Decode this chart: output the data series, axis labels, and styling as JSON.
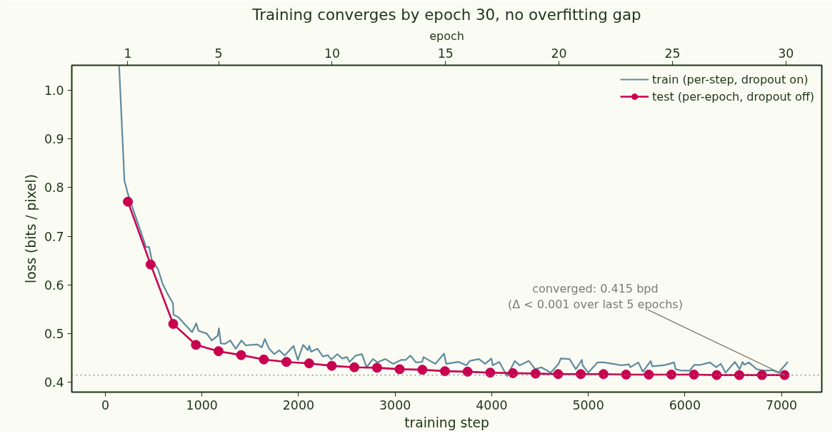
{
  "chart_data": {
    "type": "line",
    "title": "Training converges by epoch 30, no overfitting gap",
    "xlabel": "training step",
    "ylabel": "loss (bits / pixel)",
    "x2label": "epoch",
    "xlim": [
      -347,
      7417
    ],
    "xticks": [
      0,
      1000,
      2000,
      3000,
      4000,
      5000,
      6000,
      7000
    ],
    "x2lim": [
      -1.47,
      31.58
    ],
    "x2ticks": [
      1,
      5,
      10,
      15,
      20,
      25,
      30
    ],
    "ylim": [
      0.38,
      1.051
    ],
    "yticks": [
      {
        "value": 0.4,
        "label": "0.4"
      },
      {
        "value": 0.5,
        "label": "0.5"
      },
      {
        "value": 0.6,
        "label": "0.6"
      },
      {
        "value": 0.7,
        "label": "0.7"
      },
      {
        "value": 0.8,
        "label": "0.8"
      },
      {
        "value": 0.9,
        "label": "0.9"
      },
      {
        "value": 1.0,
        "label": "1.0"
      }
    ],
    "grid": false,
    "legend": "top right",
    "line_style": "solid",
    "series": [
      {
        "name": "train (per-step, dropout on)",
        "color": "#5f8aa0",
        "marker": "none",
        "x": [
          143,
          198,
          240,
          421,
          453,
          483,
          545,
          594,
          644,
          701,
          706,
          755,
          898,
          941,
          965,
          1052,
          1102,
          1164,
          1176,
          1196,
          1238,
          1294,
          1349,
          1410,
          1453,
          1572,
          1621,
          1651,
          1696,
          1750,
          1800,
          1857,
          1948,
          1993,
          2048,
          2097,
          2112,
          2130,
          2197,
          2253,
          2303,
          2340,
          2402,
          2452,
          2502,
          2528,
          2592,
          2657,
          2705,
          2770,
          2818,
          2899,
          2980,
          3061,
          3109,
          3158,
          3216,
          3280,
          3294,
          3416,
          3507,
          3529,
          3658,
          3739,
          3771,
          3868,
          3932,
          3997,
          4010,
          4078,
          4159,
          4240,
          4288,
          4385,
          4450,
          4514,
          4611,
          4692,
          4715,
          4805,
          4870,
          4934,
          4941,
          4999,
          5096,
          5161,
          5258,
          5339,
          5419,
          5436,
          5517,
          5565,
          5646,
          5662,
          5775,
          5840,
          5888,
          5904,
          5969,
          6049,
          6098,
          6162,
          6259,
          6324,
          6372,
          6421,
          6518,
          6566,
          6598,
          6614,
          6662,
          6743,
          6824,
          6904,
          6969,
          7066
        ],
        "values": [
          1.05,
          0.814,
          0.783,
          0.678,
          0.678,
          0.65,
          0.633,
          0.602,
          0.582,
          0.562,
          0.539,
          0.534,
          0.503,
          0.521,
          0.506,
          0.5,
          0.486,
          0.496,
          0.511,
          0.48,
          0.479,
          0.486,
          0.469,
          0.486,
          0.476,
          0.478,
          0.472,
          0.489,
          0.469,
          0.458,
          0.466,
          0.455,
          0.475,
          0.446,
          0.477,
          0.466,
          0.475,
          0.463,
          0.469,
          0.453,
          0.456,
          0.447,
          0.458,
          0.449,
          0.452,
          0.442,
          0.455,
          0.458,
          0.431,
          0.448,
          0.441,
          0.448,
          0.438,
          0.446,
          0.446,
          0.455,
          0.441,
          0.442,
          0.452,
          0.438,
          0.459,
          0.438,
          0.442,
          0.435,
          0.444,
          0.448,
          0.438,
          0.449,
          0.435,
          0.442,
          0.413,
          0.444,
          0.435,
          0.444,
          0.427,
          0.431,
          0.42,
          0.438,
          0.449,
          0.448,
          0.427,
          0.446,
          0.435,
          0.42,
          0.441,
          0.441,
          0.438,
          0.435,
          0.437,
          0.431,
          0.441,
          0.422,
          0.444,
          0.433,
          0.435,
          0.438,
          0.441,
          0.427,
          0.424,
          0.424,
          0.436,
          0.436,
          0.441,
          0.431,
          0.438,
          0.42,
          0.442,
          0.427,
          0.442,
          0.436,
          0.441,
          0.427,
          0.424,
          0.425,
          0.42,
          0.442
        ]
      },
      {
        "name": "test (per-epoch, dropout off)",
        "color": "#c8004f",
        "marker": "circle",
        "x": [
          234,
          469,
          703,
          938,
          1172,
          1406,
          1641,
          1875,
          2110,
          2344,
          2578,
          2813,
          3047,
          3282,
          3516,
          3750,
          3985,
          4219,
          4454,
          4688,
          4922,
          5157,
          5391,
          5626,
          5860,
          6094,
          6329,
          6563,
          6798,
          7032
        ],
        "values": [
          0.771,
          0.642,
          0.52,
          0.477,
          0.464,
          0.456,
          0.447,
          0.442,
          0.439,
          0.434,
          0.431,
          0.43,
          0.427,
          0.426,
          0.423,
          0.422,
          0.42,
          0.419,
          0.418,
          0.417,
          0.417,
          0.417,
          0.416,
          0.416,
          0.416,
          0.416,
          0.415,
          0.415,
          0.415,
          0.415
        ]
      }
    ],
    "ref_lines": [
      {
        "axis": "y",
        "value": 0.415,
        "label": null,
        "color": "#808080",
        "line_style": "dotted"
      }
    ],
    "annotations": [
      {
        "text": "converged: 0.415 bpd\n(Δ < 0.001 over last 5 epochs)",
        "x": 7032,
        "y": 0.415
      }
    ]
  }
}
